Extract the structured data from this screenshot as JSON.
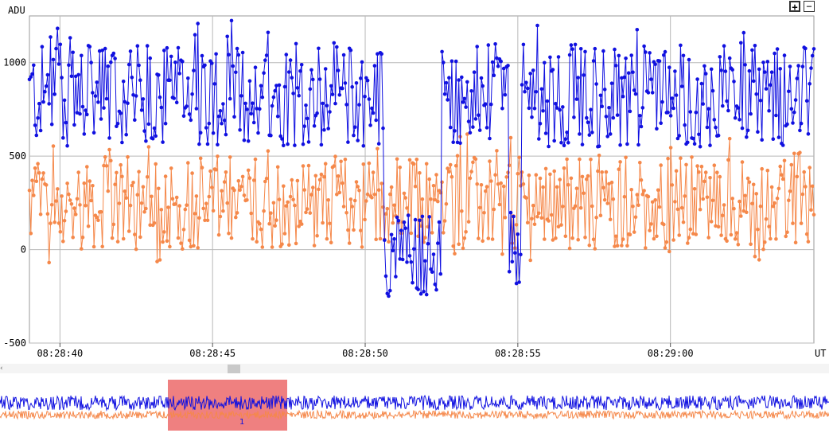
{
  "ui": {
    "zoom_in_label": "+",
    "zoom_out_label": "−",
    "scroll_left_glyph": "‹",
    "overview_marker": "1"
  },
  "colors": {
    "series_blue": "#1010e0",
    "series_orange": "#f5884a",
    "grid": "#b8b8b8",
    "overview_window": "#ef8080"
  },
  "chart_data": {
    "type": "line",
    "ylabel": "ADU",
    "xlabel": "UT",
    "ylim": [
      -500,
      1250
    ],
    "yticks": [
      -500,
      0,
      500,
      1000
    ],
    "xlim_seconds_after_08_28_39": [
      0,
      25.7
    ],
    "xtick_values_seconds": [
      1,
      6,
      11,
      16,
      21
    ],
    "xtick_labels": [
      "08:28:40",
      "08:28:45",
      "08:28:50",
      "08:28:55",
      "08:29:00"
    ],
    "grid": true,
    "series": [
      {
        "name": "",
        "color": "#1010e0",
        "typical_range": [
          550,
          1100
        ],
        "dips": [
          {
            "x_range": [
              "08:28:50.6",
              "08:28:52.5"
            ],
            "range": [
              -250,
              200
            ]
          },
          {
            "x_range": [
              "08:28:54.7",
              "08:28:55.1"
            ],
            "range": [
              -220,
              200
            ]
          }
        ]
      },
      {
        "name": "",
        "color": "#f5884a",
        "typical_range": [
          0,
          500
        ]
      }
    ],
    "overview": {
      "window_start": "08:28:44.5",
      "window_end": "08:28:48.5"
    }
  }
}
